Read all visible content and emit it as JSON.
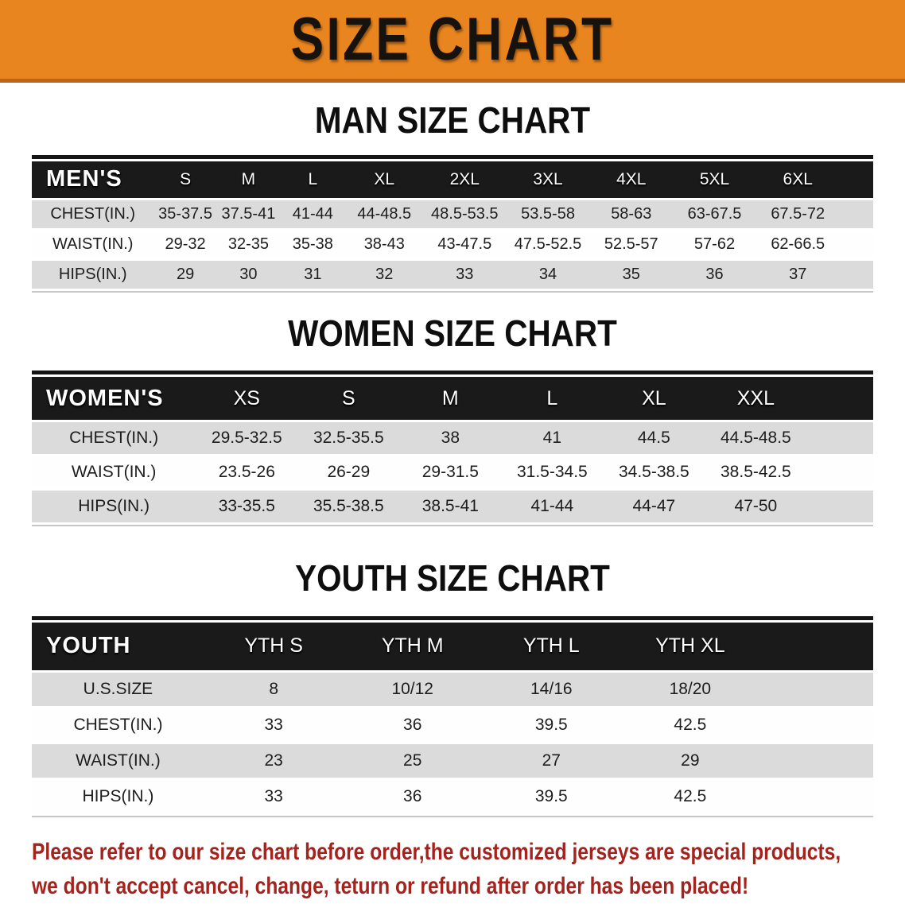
{
  "banner": {
    "title": "SIZE CHART",
    "bg_color": "#E8851F"
  },
  "sections": [
    {
      "title": "MAN SIZE CHART",
      "header_label": "MEN'S",
      "columns": [
        "S",
        "M",
        "L",
        "XL",
        "2XL",
        "3XL",
        "4XL",
        "5XL",
        "6XL"
      ],
      "rows": [
        {
          "label": "CHEST(IN.)",
          "values": [
            "35-37.5",
            "37.5-41",
            "41-44",
            "44-48.5",
            "48.5-53.5",
            "53.5-58",
            "58-63",
            "63-67.5",
            "67.5-72"
          ]
        },
        {
          "label": "WAIST(IN.)",
          "values": [
            "29-32",
            "32-35",
            "35-38",
            "38-43",
            "43-47.5",
            "47.5-52.5",
            "52.5-57",
            "57-62",
            "62-66.5"
          ]
        },
        {
          "label": "HIPS(IN.)",
          "values": [
            "29",
            "30",
            "31",
            "32",
            "33",
            "34",
            "35",
            "36",
            "37"
          ]
        }
      ]
    },
    {
      "title": "WOMEN SIZE CHART",
      "header_label": "WOMEN'S",
      "columns": [
        "XS",
        "S",
        "M",
        "L",
        "XL",
        "XXL"
      ],
      "rows": [
        {
          "label": "CHEST(IN.)",
          "values": [
            "29.5-32.5",
            "32.5-35.5",
            "38",
            "41",
            "44.5",
            "44.5-48.5"
          ]
        },
        {
          "label": "WAIST(IN.)",
          "values": [
            "23.5-26",
            "26-29",
            "29-31.5",
            "31.5-34.5",
            "34.5-38.5",
            "38.5-42.5"
          ]
        },
        {
          "label": "HIPS(IN.)",
          "values": [
            "33-35.5",
            "35.5-38.5",
            "38.5-41",
            "41-44",
            "44-47",
            "47-50"
          ]
        }
      ]
    },
    {
      "title": "YOUTH SIZE CHART",
      "header_label": "YOUTH",
      "columns": [
        "YTH S",
        "YTH M",
        "YTH L",
        "YTH XL"
      ],
      "rows": [
        {
          "label": "U.S.SIZE",
          "values": [
            "8",
            "10/12",
            "14/16",
            "18/20"
          ]
        },
        {
          "label": "CHEST(IN.)",
          "values": [
            "33",
            "36",
            "39.5",
            "42.5"
          ]
        },
        {
          "label": "WAIST(IN.)",
          "values": [
            "23",
            "25",
            "27",
            "29"
          ]
        },
        {
          "label": "HIPS(IN.)",
          "values": [
            "33",
            "36",
            "39.5",
            "42.5"
          ]
        }
      ]
    }
  ],
  "footer": {
    "line1": "Please refer to our size chart before order,the customized jerseys are special products,",
    "line2": "we don't accept cancel, change, teturn or refund after order has been placed!",
    "text_color": "#A3241E"
  },
  "colors": {
    "header_row": "#1A1A1A",
    "shaded_row": "#DBDBDB",
    "banner_border": "#BA641A"
  }
}
